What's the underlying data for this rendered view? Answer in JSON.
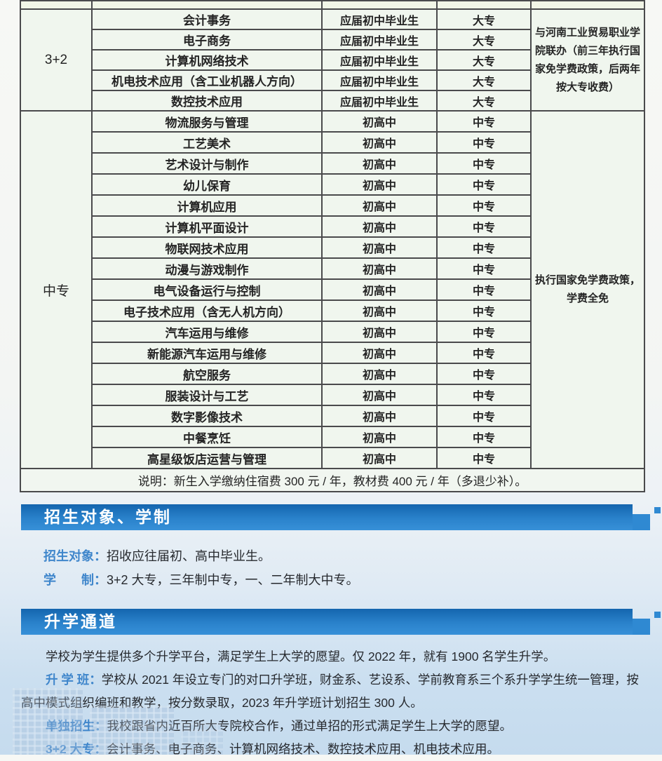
{
  "colors": {
    "band_blue": "#2a82cb",
    "label_blue": "#3f86cb",
    "table_border": "#4a4a4c",
    "cell_bg": "#f0f6ee"
  },
  "table": {
    "sections": [
      {
        "category": "3+2",
        "note": "与河南工业贸易职业学院联办（前三年执行国家免学费政策，后两年按大专收费）",
        "rows": [
          {
            "program": "会计事务",
            "applicant": "应届初中毕业生",
            "degree": "大专"
          },
          {
            "program": "电子商务",
            "applicant": "应届初中毕业生",
            "degree": "大专"
          },
          {
            "program": "计算机网络技术",
            "applicant": "应届初中毕业生",
            "degree": "大专"
          },
          {
            "program": "机电技术应用（含工业机器人方向）",
            "applicant": "应届初中毕业生",
            "degree": "大专"
          },
          {
            "program": "数控技术应用",
            "applicant": "应届初中毕业生",
            "degree": "大专"
          }
        ]
      },
      {
        "category": "中专",
        "note": "执行国家免学费政策，学费全免",
        "rows": [
          {
            "program": "物流服务与管理",
            "applicant": "初高中",
            "degree": "中专"
          },
          {
            "program": "工艺美术",
            "applicant": "初高中",
            "degree": "中专"
          },
          {
            "program": "艺术设计与制作",
            "applicant": "初高中",
            "degree": "中专"
          },
          {
            "program": "幼儿保育",
            "applicant": "初高中",
            "degree": "中专"
          },
          {
            "program": "计算机应用",
            "applicant": "初高中",
            "degree": "中专"
          },
          {
            "program": "计算机平面设计",
            "applicant": "初高中",
            "degree": "中专"
          },
          {
            "program": "物联网技术应用",
            "applicant": "初高中",
            "degree": "中专"
          },
          {
            "program": "动漫与游戏制作",
            "applicant": "初高中",
            "degree": "中专"
          },
          {
            "program": "电气设备运行与控制",
            "applicant": "初高中",
            "degree": "中专"
          },
          {
            "program": "电子技术应用（含无人机方向）",
            "applicant": "初高中",
            "degree": "中专"
          },
          {
            "program": "汽车运用与维修",
            "applicant": "初高中",
            "degree": "中专"
          },
          {
            "program": "新能源汽车运用与维修",
            "applicant": "初高中",
            "degree": "中专"
          },
          {
            "program": "航空服务",
            "applicant": "初高中",
            "degree": "中专"
          },
          {
            "program": "服装设计与工艺",
            "applicant": "初高中",
            "degree": "中专"
          },
          {
            "program": "数字影像技术",
            "applicant": "初高中",
            "degree": "中专"
          },
          {
            "program": "中餐烹饪",
            "applicant": "初高中",
            "degree": "中专"
          },
          {
            "program": "高星级饭店运营与管理",
            "applicant": "初高中",
            "degree": "中专"
          }
        ]
      }
    ],
    "footer": "说明：新生入学缴纳住宿费 300 元 / 年，教材费 400 元 / 年（多退少补）。"
  },
  "info_sections": [
    {
      "title": "招生对象、学制",
      "paragraphs": [
        {
          "label": "招生对象：",
          "text": "招收应往届初、高中毕业生。"
        },
        {
          "label": "学　　制：",
          "text": "3+2 大专，三年制中专，一、二年制大中专。"
        }
      ]
    },
    {
      "title": "升学通道",
      "paragraphs": [
        {
          "label": "",
          "text": "学校为学生提供多个升学平台，满足学生上大学的愿望。仅 2022 年，就有 1900 名学生升学。"
        },
        {
          "label": "升 学 班：",
          "text": "学校从 2021 年设立专门的对口升学班，财金系、艺设系、学前教育系三个系升学学生统一管理，按高中模式组织编班和教学，按分数录取，2023 年升学班计划招生 300 人。"
        },
        {
          "label": "单独招生：",
          "text": "我校跟省内近百所大专院校合作，通过单招的形式满足学生上大学的愿望。"
        },
        {
          "label": "3+2 大专：",
          "text": "会计事务、电子商务、计算机网络技术、数控技术应用、机电技术应用。"
        }
      ]
    }
  ]
}
